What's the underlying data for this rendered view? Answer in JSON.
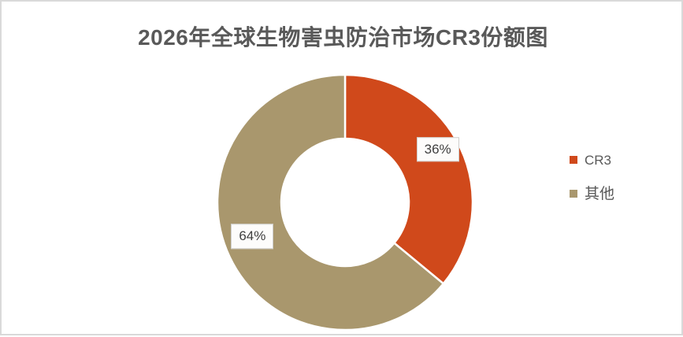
{
  "chart_data": {
    "type": "pie",
    "donut": true,
    "title": "2026年全球生物害虫防治市场CR3份额图",
    "categories": [
      "CR3",
      "其他"
    ],
    "values": [
      36,
      64
    ],
    "labels": [
      "36%",
      "64%"
    ],
    "colors": [
      "#d0491b",
      "#a9976d"
    ],
    "start_angle_deg": 0,
    "direction": "clockwise",
    "legend_position": "right",
    "data_labels": "percent"
  }
}
